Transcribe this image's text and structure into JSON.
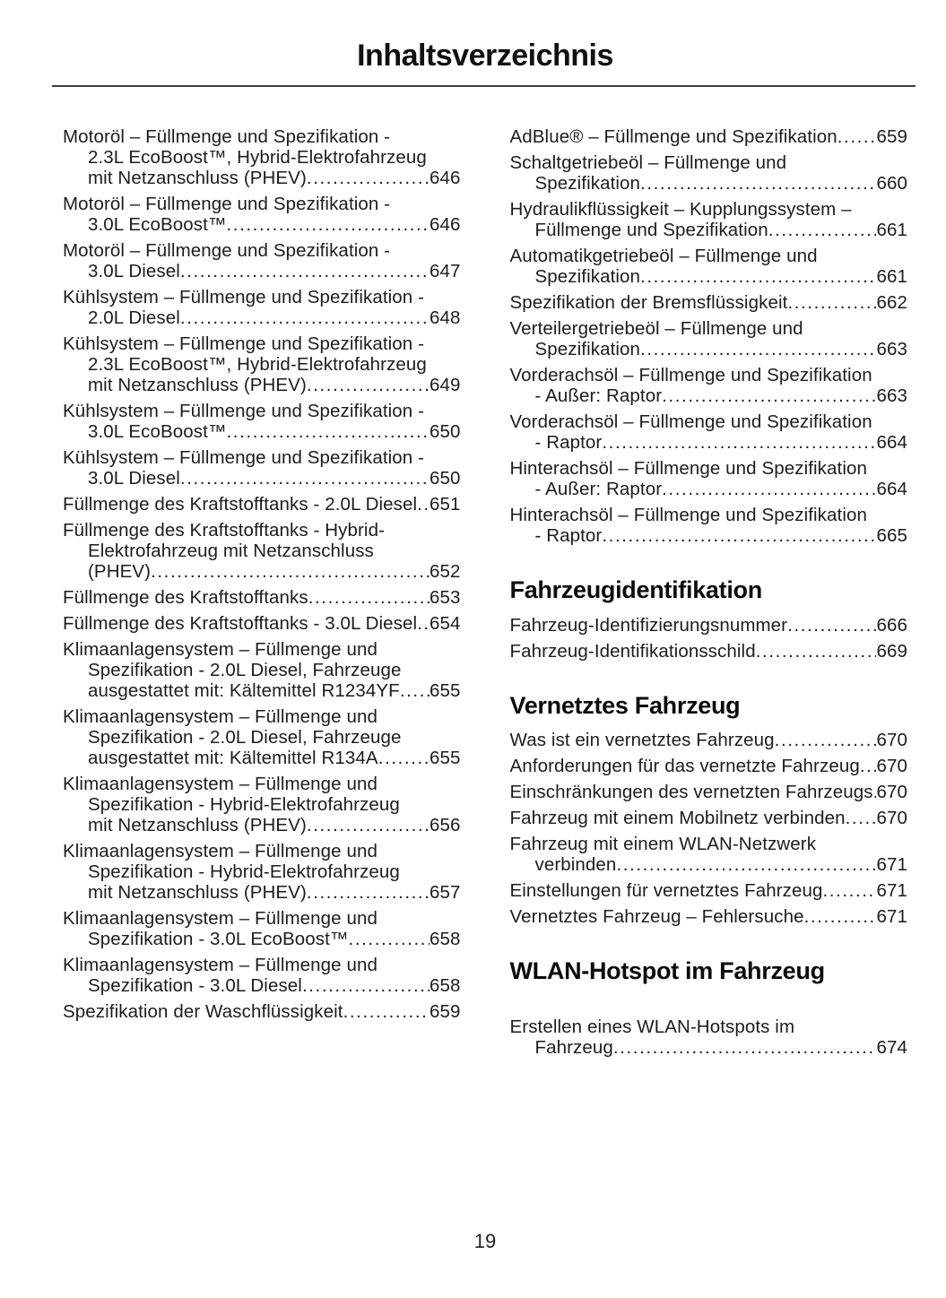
{
  "page": {
    "title": "Inhaltsverzeichnis",
    "page_number": "19"
  },
  "toc": {
    "left_column": {
      "sections": [
        {
          "heading": null,
          "entries": [
            {
              "label": "Motoröl – Füllmenge und Spezifikation - 2.3L EcoBoost™, Hybrid-Elektrofahrzeug mit Netzanschluss (PHEV)",
              "page": "646"
            },
            {
              "label": "Motoröl – Füllmenge und Spezifikation - 3.0L EcoBoost™",
              "page": "646"
            },
            {
              "label": "Motoröl – Füllmenge und Spezifikation - 3.0L Diesel",
              "page": "647"
            },
            {
              "label": "Kühlsystem – Füllmenge und Spezifikation - 2.0L Diesel",
              "page": "648"
            },
            {
              "label": "Kühlsystem – Füllmenge und Spezifikation - 2.3L EcoBoost™, Hybrid-Elektrofahrzeug mit Netzanschluss (PHEV)",
              "page": "649"
            },
            {
              "label": "Kühlsystem – Füllmenge und Spezifikation - 3.0L EcoBoost™",
              "page": "650"
            },
            {
              "label": "Kühlsystem – Füllmenge und Spezifikation - 3.0L Diesel",
              "page": "650"
            },
            {
              "label": "Füllmenge des Kraftstofftanks - 2.0L Diesel",
              "page": "651"
            },
            {
              "label": "Füllmenge des Kraftstofftanks - Hybrid-Elektrofahrzeug mit Netzanschluss (PHEV)",
              "page": "652"
            },
            {
              "label": "Füllmenge des Kraftstofftanks",
              "page": "653"
            },
            {
              "label": "Füllmenge des Kraftstofftanks - 3.0L Diesel",
              "page": "654"
            },
            {
              "label": "Klimaanlagensystem – Füllmenge und Spezifikation - 2.0L Diesel, Fahrzeuge ausgestattet mit: Kältemittel R1234YF",
              "page": "655"
            },
            {
              "label": "Klimaanlagensystem – Füllmenge und Spezifikation - 2.0L Diesel, Fahrzeuge ausgestattet mit: Kältemittel R134A",
              "page": "655"
            },
            {
              "label": "Klimaanlagensystem – Füllmenge und Spezifikation - Hybrid-Elektrofahrzeug mit Netzanschluss (PHEV)",
              "page": "656"
            },
            {
              "label": "Klimaanlagensystem – Füllmenge und Spezifikation - Hybrid-Elektrofahrzeug mit Netzanschluss (PHEV)",
              "page": "657"
            },
            {
              "label": "Klimaanlagensystem – Füllmenge und Spezifikation - 3.0L EcoBoost™",
              "page": "658"
            },
            {
              "label": "Klimaanlagensystem – Füllmenge und Spezifikation - 3.0L Diesel",
              "page": "658"
            },
            {
              "label": "Spezifikation der Waschflüssigkeit",
              "page": "659"
            }
          ]
        }
      ]
    },
    "right_column": {
      "sections": [
        {
          "heading": null,
          "entries": [
            {
              "label": "AdBlue® – Füllmenge und Spezifikation",
              "page": "659"
            },
            {
              "label": "Schaltgetriebeöl – Füllmenge und Spezifikation",
              "page": "660"
            },
            {
              "label": "Hydraulikflüssigkeit – Kupplungssystem – Füllmenge und Spezifikation",
              "page": "661"
            },
            {
              "label": "Automatikgetriebeöl – Füllmenge und Spezifikation",
              "page": "661"
            },
            {
              "label": "Spezifikation der Bremsflüssigkeit",
              "page": "662"
            },
            {
              "label": "Verteilergetriebeöl – Füllmenge und Spezifikation",
              "page": "663"
            },
            {
              "label": "Vorderachsöl – Füllmenge und Spezifikation - Außer: Raptor",
              "page": "663"
            },
            {
              "label": "Vorderachsöl – Füllmenge und Spezifikation - Raptor",
              "page": "664"
            },
            {
              "label": "Hinterachsöl – Füllmenge und Spezifikation - Außer: Raptor",
              "page": "664"
            },
            {
              "label": "Hinterachsöl – Füllmenge und Spezifikation - Raptor",
              "page": "665"
            }
          ]
        },
        {
          "heading": "Fahrzeugidentifikation",
          "entries": [
            {
              "label": "Fahrzeug-Identifizierungsnummer",
              "page": "666"
            },
            {
              "label": "Fahrzeug-Identifikationsschild",
              "page": "669"
            }
          ]
        },
        {
          "heading": "Vernetztes Fahrzeug",
          "entries": [
            {
              "label": "Was ist ein vernetztes Fahrzeug",
              "page": "670"
            },
            {
              "label": "Anforderungen für das vernetzte Fahrzeug",
              "page": "670"
            },
            {
              "label": "Einschränkungen des vernetzten Fahrzeugs",
              "page": "670"
            },
            {
              "label": "Fahrzeug mit einem Mobilnetz verbinden",
              "page": "670"
            },
            {
              "label": "Fahrzeug mit einem WLAN-Netzwerk verbinden",
              "page": "671"
            },
            {
              "label": "Einstellungen für vernetztes Fahrzeug",
              "page": "671"
            },
            {
              "label": "Vernetztes Fahrzeug – Fehlersuche",
              "page": "671"
            }
          ]
        },
        {
          "heading": "WLAN-Hotspot im Fahrzeug",
          "entries": [
            {
              "label": "Erstellen eines WLAN-Hotspots im Fahrzeug",
              "page": "674"
            }
          ]
        }
      ]
    }
  }
}
